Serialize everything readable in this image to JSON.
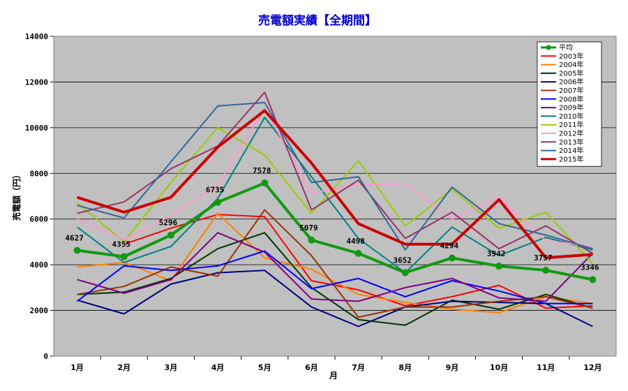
{
  "chart_data": {
    "type": "line",
    "title": "売電額実績【全期間】",
    "title_color": "#0000cc",
    "xlabel": "月",
    "ylabel": "売電額（円）",
    "ylim": [
      0,
      14000
    ],
    "yticks": [
      0,
      2000,
      4000,
      6000,
      8000,
      10000,
      12000,
      14000
    ],
    "grid": true,
    "plot_background": "#c0c0c0",
    "legend_position": "top-right",
    "categories": [
      "1月",
      "2月",
      "3月",
      "4月",
      "5月",
      "6月",
      "7月",
      "8月",
      "9月",
      "10月",
      "11月",
      "12月"
    ],
    "series": [
      {
        "name": "平均",
        "color": "#129912",
        "width": 4,
        "marker": true,
        "labels": true,
        "values": [
          4627,
          4355,
          5296,
          6735,
          7578,
          5079,
          4498,
          3652,
          4294,
          3942,
          3757,
          3346
        ]
      },
      {
        "name": "2003年",
        "color": "#ff0000",
        "width": 2,
        "values": [
          null,
          4900,
          5600,
          6200,
          6100,
          3300,
          2900,
          2200,
          2600,
          3100,
          2100,
          2200
        ]
      },
      {
        "name": "2004年",
        "color": "#ff7f00",
        "width": 2,
        "values": [
          3900,
          4100,
          3300,
          6250,
          4300,
          3800,
          2700,
          2350,
          2050,
          1900,
          2600,
          2300
        ]
      },
      {
        "name": "2005年",
        "color": "#003300",
        "width": 2,
        "values": [
          2700,
          2800,
          3400,
          4700,
          5400,
          3000,
          1600,
          1350,
          2450,
          2050,
          2700,
          2100
        ]
      },
      {
        "name": "2006年",
        "color": "#000080",
        "width": 2,
        "values": [
          2450,
          1850,
          3150,
          3650,
          3750,
          2150,
          1300,
          2150,
          2400,
          2350,
          2300,
          1300
        ]
      },
      {
        "name": "2007年",
        "color": "#993300",
        "width": 2,
        "values": [
          2700,
          3050,
          3900,
          3500,
          6400,
          4400,
          1700,
          2150,
          2150,
          2400,
          2600,
          2100
        ]
      },
      {
        "name": "2008年",
        "color": "#0000ff",
        "width": 2,
        "values": [
          2400,
          3950,
          3750,
          3950,
          4600,
          2950,
          3400,
          2600,
          3300,
          2850,
          2300,
          2300
        ]
      },
      {
        "name": "2009年",
        "color": "#800080",
        "width": 2,
        "values": [
          3350,
          2750,
          3350,
          5400,
          4550,
          2500,
          2400,
          3000,
          3400,
          2550,
          2400,
          4500
        ]
      },
      {
        "name": "2010年",
        "color": "#008080",
        "width": 2,
        "values": [
          5650,
          4100,
          4800,
          6900,
          10450,
          7850,
          5150,
          3650,
          5650,
          4400,
          5200,
          4650
        ]
      },
      {
        "name": "2011年",
        "color": "#99cc00",
        "width": 2,
        "values": [
          6700,
          5000,
          7600,
          10000,
          8800,
          6250,
          8550,
          5700,
          7300,
          5600,
          6300,
          4050
        ]
      },
      {
        "name": "2012年",
        "color": "#ff99cc",
        "width": 2,
        "values": [
          6000,
          5100,
          6150,
          7500,
          10850,
          7150,
          7500,
          7550,
          6000,
          6950,
          5050,
          4800
        ]
      },
      {
        "name": "2013年",
        "color": "#993366",
        "width": 2,
        "values": [
          6250,
          6750,
          8200,
          9200,
          11550,
          6400,
          7700,
          5150,
          6300,
          4700,
          5700,
          4500
        ]
      },
      {
        "name": "2014年",
        "color": "#336699",
        "width": 2,
        "values": [
          6600,
          6050,
          8500,
          10950,
          11100,
          7600,
          7850,
          4650,
          7400,
          5800,
          5300,
          4700
        ]
      },
      {
        "name": "2015年",
        "color": "#cc0000",
        "width": 4,
        "values": [
          6950,
          6300,
          6950,
          9150,
          10750,
          8450,
          5800,
          4900,
          4900,
          6850,
          4300,
          4450
        ]
      }
    ]
  }
}
